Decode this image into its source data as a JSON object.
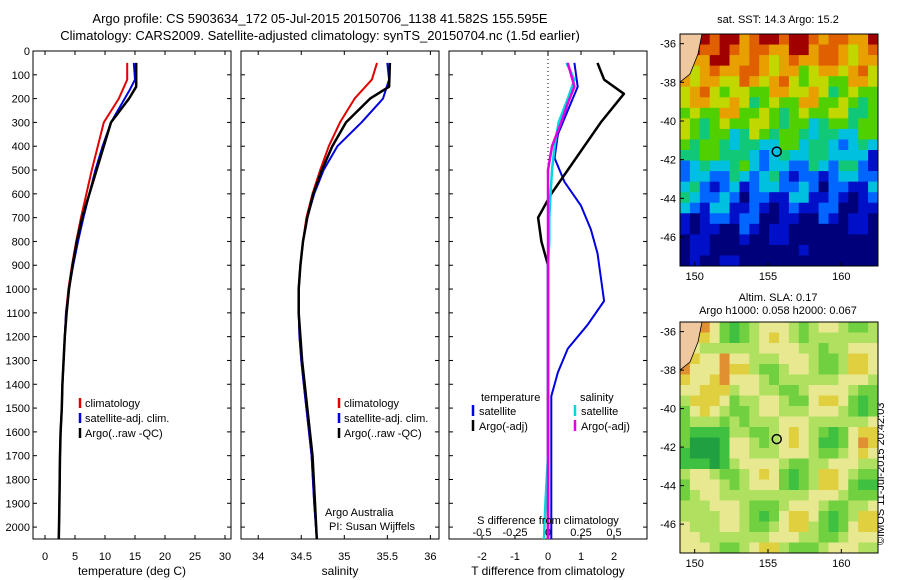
{
  "header": {
    "line1": "Argo profile: CS 5903634_172 05-Jul-2015 20150706_1138 41.582S 155.595E",
    "line2": "Climatology: CARS2009. Satellite-adjusted climatology: synTS_20150704.nc (1.5d earlier)"
  },
  "maps": {
    "sst_title": "sat. SST: 14.3  Argo: 15.2",
    "sla_title_1": "Altim. SLA: 0.17",
    "sla_title_2": "Argo h1000: 0.058  h2000: 0.067",
    "stamp": "©IMOS 11-Jul-2015 20:42:03",
    "lat_ticks": [
      -36,
      -38,
      -40,
      -42,
      -44,
      -46
    ],
    "lon_ticks": [
      150,
      155,
      160
    ],
    "float_position": {
      "lon": 155.595,
      "lat": -41.582
    }
  },
  "panels": {
    "depth_ticks": [
      0,
      100,
      200,
      300,
      400,
      500,
      600,
      700,
      800,
      900,
      1000,
      1100,
      1200,
      1300,
      1400,
      1500,
      1600,
      1700,
      1800,
      1900,
      2000
    ],
    "temperature": {
      "xlabel": "temperature (deg C)",
      "xticks": [
        0,
        5,
        10,
        15,
        20,
        25,
        30
      ],
      "legend": [
        "climatology",
        "satellite-adj. clim.",
        "Argo(..raw -QC)"
      ]
    },
    "salinity": {
      "xlabel": "salinity",
      "xticks": [
        "34",
        "34.5",
        "35",
        "35.5",
        "36"
      ],
      "legend": [
        "climatology",
        "satellite-adj. clim.",
        "Argo(..raw -QC)"
      ],
      "credit_1": "Argo Australia",
      "credit_2": "PI: Susan Wijffels"
    },
    "difference": {
      "xlabel_top": "S difference from climatology",
      "xlabel_bottom": "T difference from climatology",
      "s_ticks": [
        "-0.5",
        "-0.25",
        "0",
        "0.25",
        "0.5"
      ],
      "t_ticks": [
        "-2",
        "-1",
        "0",
        "1",
        "2"
      ],
      "legend_t_head": "temperature",
      "legend_s_head": "salinity",
      "legend_t": [
        "satellite",
        "Argo(-adj)"
      ],
      "legend_s": [
        "satellite",
        "Argo(-adj)"
      ]
    }
  },
  "colors": {
    "climatology": "#e00000",
    "satellite": "#0000e0",
    "argo": "#000000",
    "s_satellite": "#00d8e0",
    "s_argo": "#e000e0"
  },
  "chart_data": [
    {
      "type": "line",
      "title": "",
      "xlabel": "temperature (deg C)",
      "ylabel": "depth",
      "xlim": [
        -2,
        31
      ],
      "ylim": [
        2050,
        0
      ],
      "series": [
        {
          "name": "climatology",
          "x": [
            13.7,
            13.7,
            12.3,
            9.8,
            8.8,
            7.8,
            6.9,
            6.0,
            5.2,
            4.5,
            3.9,
            3.5,
            3.3,
            3.1,
            2.9,
            2.8,
            2.6,
            2.5,
            2.4,
            2.3
          ],
          "y": [
            50,
            120,
            200,
            300,
            400,
            500,
            600,
            700,
            800,
            900,
            1000,
            1100,
            1200,
            1300,
            1400,
            1500,
            1600,
            1700,
            1900,
            2050
          ]
        },
        {
          "name": "satellite-adj. clim.",
          "x": [
            14.8,
            15.0,
            14.2,
            11.0,
            9.6,
            8.4,
            7.4,
            6.4,
            5.5,
            4.7,
            4.0,
            3.5,
            3.3,
            3.1,
            2.9,
            2.8,
            2.6,
            2.5,
            2.4,
            2.3
          ],
          "y": [
            50,
            120,
            160,
            300,
            400,
            500,
            600,
            700,
            800,
            900,
            1000,
            1100,
            1200,
            1300,
            1400,
            1500,
            1600,
            1700,
            1900,
            2050
          ]
        },
        {
          "name": "Argo(..raw -QC)",
          "x": [
            15.2,
            15.2,
            14.0,
            11.0,
            9.8,
            8.6,
            7.4,
            6.2,
            5.3,
            4.6,
            4.0,
            3.6,
            3.3,
            3.1,
            2.9,
            2.8,
            2.6,
            2.5,
            2.4,
            2.3
          ],
          "y": [
            50,
            150,
            200,
            300,
            400,
            500,
            600,
            700,
            800,
            900,
            1000,
            1100,
            1200,
            1300,
            1400,
            1500,
            1600,
            1700,
            1900,
            2050
          ]
        }
      ]
    },
    {
      "type": "line",
      "title": "",
      "xlabel": "salinity",
      "ylabel": "depth",
      "xlim": [
        33.8,
        36.1
      ],
      "ylim": [
        2050,
        0
      ],
      "series": [
        {
          "name": "climatology",
          "x": [
            35.38,
            35.32,
            35.12,
            34.95,
            34.82,
            34.72,
            34.63,
            34.56,
            34.52,
            34.49,
            34.47,
            34.47,
            34.48,
            34.5,
            34.53,
            34.56,
            34.59,
            34.62,
            34.65,
            34.68
          ],
          "y": [
            50,
            120,
            200,
            300,
            400,
            500,
            600,
            700,
            800,
            900,
            1000,
            1100,
            1200,
            1300,
            1400,
            1500,
            1600,
            1700,
            1900,
            2050
          ]
        },
        {
          "name": "satellite-adj. clim.",
          "x": [
            35.5,
            35.52,
            35.45,
            35.2,
            34.92,
            34.76,
            34.65,
            34.57,
            34.52,
            34.49,
            34.47,
            34.47,
            34.48,
            34.5,
            34.53,
            34.56,
            34.59,
            34.62,
            34.65,
            34.68
          ],
          "y": [
            50,
            120,
            200,
            300,
            400,
            500,
            600,
            700,
            800,
            900,
            1000,
            1100,
            1200,
            1300,
            1400,
            1500,
            1600,
            1700,
            1900,
            2050
          ]
        },
        {
          "name": "Argo(..raw -QC)",
          "x": [
            35.53,
            35.52,
            35.3,
            35.02,
            34.86,
            34.74,
            34.64,
            34.57,
            34.52,
            34.49,
            34.47,
            34.47,
            34.49,
            34.51,
            34.54,
            34.57,
            34.6,
            34.63,
            34.66,
            34.68
          ],
          "y": [
            50,
            150,
            200,
            300,
            400,
            500,
            600,
            700,
            800,
            900,
            1000,
            1100,
            1200,
            1300,
            1400,
            1500,
            1600,
            1700,
            1900,
            2050
          ]
        }
      ]
    },
    {
      "type": "line",
      "title": "",
      "xlabel": "T difference from climatology",
      "ylabel": "depth",
      "xlim": [
        -3,
        3
      ],
      "ylim": [
        2050,
        0
      ],
      "series": [
        {
          "name": "temperature satellite",
          "x": [
            0.8,
            0.9,
            0.6,
            0.3,
            0.2,
            0.5,
            1.0,
            1.3,
            1.5,
            1.6,
            1.7,
            1.2,
            0.6,
            0.3,
            0.1,
            0.1,
            0.1,
            0.1,
            0.1,
            0.1
          ],
          "y": [
            50,
            150,
            250,
            350,
            450,
            550,
            650,
            750,
            850,
            950,
            1050,
            1150,
            1250,
            1350,
            1450,
            1550,
            1650,
            1750,
            1900,
            2050
          ]
        },
        {
          "name": "temperature Argo(-adj)",
          "x": [
            1.5,
            1.7,
            2.3,
            1.6,
            1.1,
            0.6,
            0.1,
            -0.3,
            -0.2,
            0.0,
            0.0,
            0.0,
            0.0,
            0.0,
            0.0,
            0.0,
            0.0,
            0.0,
            0.0,
            0.0
          ],
          "y": [
            50,
            120,
            180,
            300,
            400,
            500,
            600,
            700,
            800,
            900,
            1000,
            1100,
            1200,
            1300,
            1400,
            1500,
            1600,
            1700,
            1900,
            2050
          ]
        }
      ]
    },
    {
      "type": "line",
      "title": "",
      "xlabel": "S difference from climatology",
      "ylabel": "depth",
      "xlim": [
        -0.75,
        0.75
      ],
      "ylim": [
        2050,
        0
      ],
      "series": [
        {
          "name": "salinity satellite",
          "x": [
            0.14,
            0.2,
            0.15,
            0.08,
            0.05,
            0.03,
            0.02,
            0.01,
            0.01,
            0.0,
            0.0,
            0.0,
            0.0,
            0.0,
            0.0,
            0.0,
            0.0,
            0.0,
            -0.02,
            -0.03
          ],
          "y": [
            50,
            120,
            200,
            300,
            400,
            500,
            600,
            700,
            800,
            900,
            1000,
            1100,
            1200,
            1300,
            1400,
            1500,
            1600,
            1700,
            1900,
            2050
          ]
        },
        {
          "name": "salinity Argo(-adj)",
          "x": [
            0.15,
            0.2,
            0.15,
            0.1,
            0.03,
            0.0,
            0.0,
            0.0,
            0.0,
            0.0,
            0.0,
            0.0,
            0.0,
            0.0,
            0.0,
            0.0,
            0.0,
            0.0,
            0.0,
            0.0
          ],
          "y": [
            50,
            150,
            220,
            300,
            400,
            500,
            600,
            700,
            800,
            900,
            1000,
            1100,
            1200,
            1300,
            1400,
            1500,
            1600,
            1700,
            1900,
            2050
          ]
        }
      ]
    }
  ]
}
